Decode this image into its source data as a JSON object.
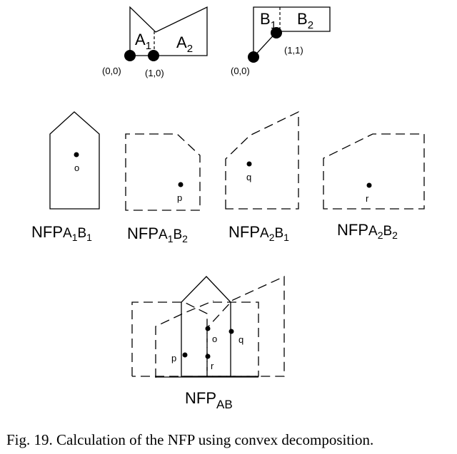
{
  "figure": {
    "caption": "Fig. 19.  Calculation of the NFP using convex decomposition.",
    "shape_a": {
      "part1_label": "A",
      "part1_sub": "1",
      "part2_label": "A",
      "part2_sub": "2",
      "ref_point": "(0,0)",
      "split_point": "(1,0)"
    },
    "shape_b": {
      "part1_label": "B",
      "part1_sub": "1",
      "part2_label": "B",
      "part2_sub": "2",
      "ref_point": "(0,0)",
      "split_point": "(1,1)"
    },
    "partial_nfps": [
      {
        "prefix": "NFP",
        "a": "A",
        "a_sub": "1",
        "b": "B",
        "b_sub": "1",
        "point": "o"
      },
      {
        "prefix": "NFP",
        "a": "A",
        "a_sub": "1",
        "b": "B",
        "b_sub": "2",
        "point": "p"
      },
      {
        "prefix": "NFP",
        "a": "A",
        "a_sub": "2",
        "b": "B",
        "b_sub": "1",
        "point": "q"
      },
      {
        "prefix": "NFP",
        "a": "A",
        "a_sub": "2",
        "b": "B",
        "b_sub": "2",
        "point": "r"
      }
    ],
    "combined": {
      "prefix": "NFP",
      "sub": "AB",
      "points": [
        "o",
        "q",
        "p",
        "r"
      ]
    }
  }
}
